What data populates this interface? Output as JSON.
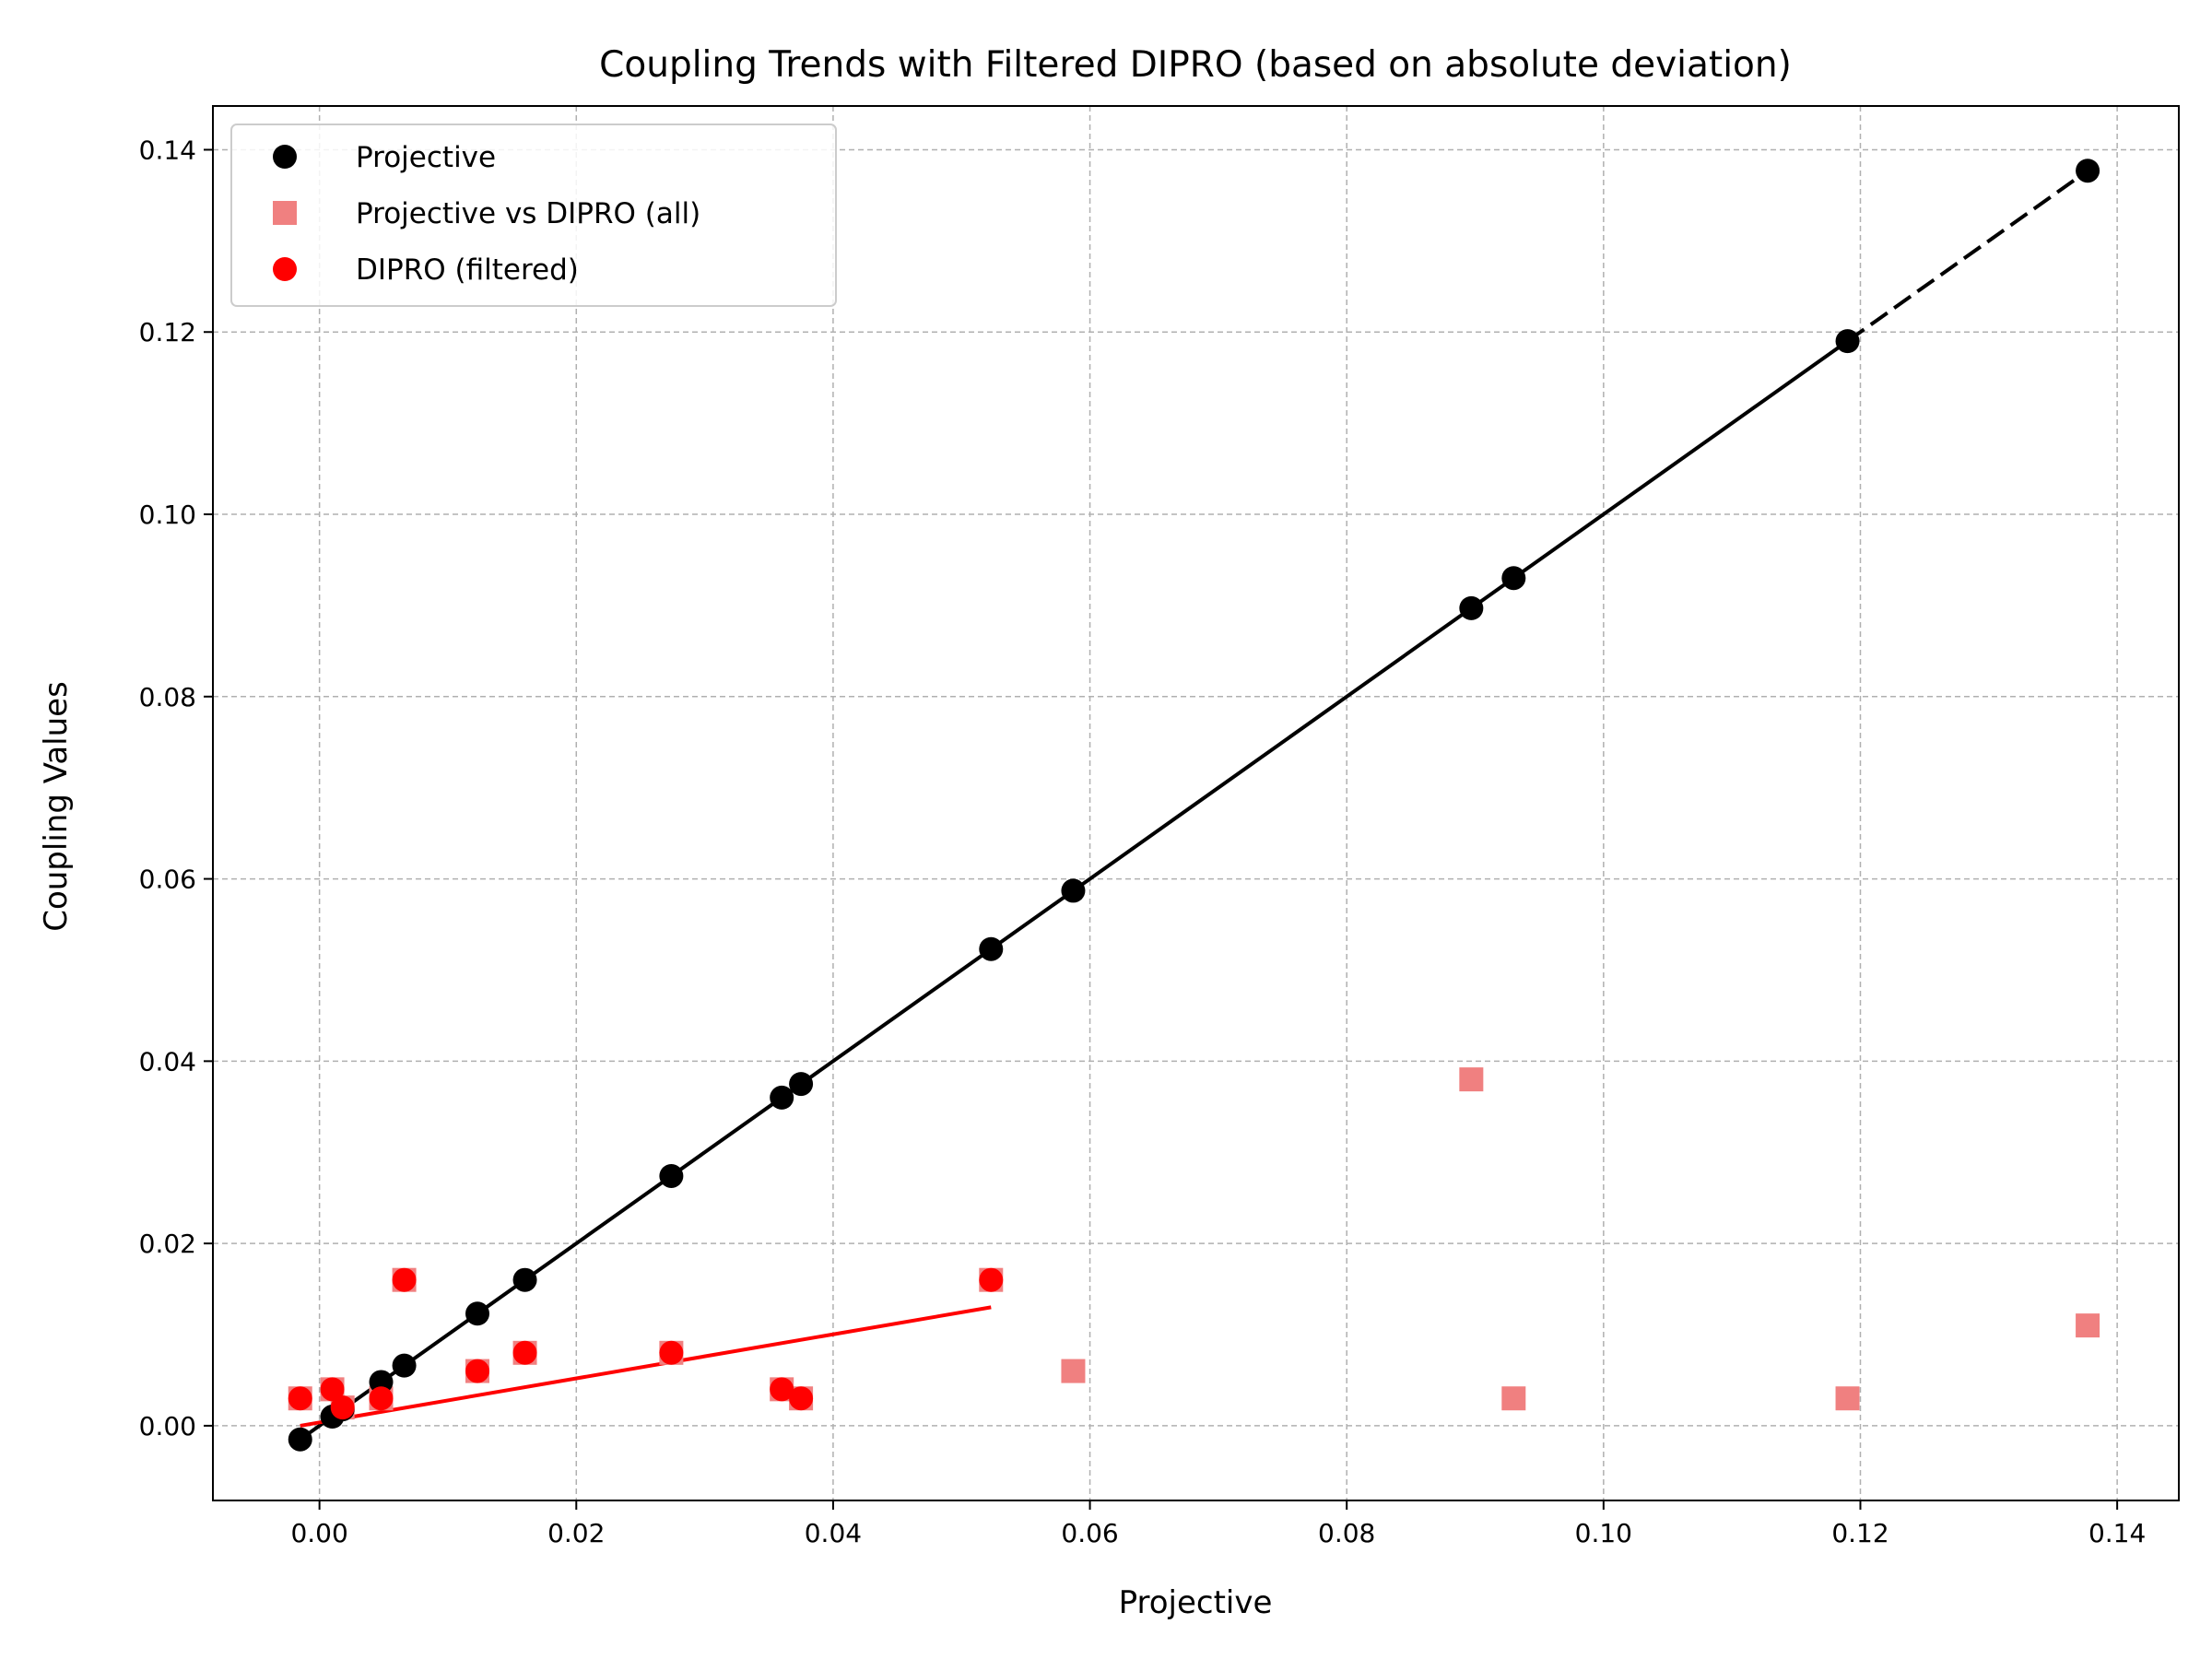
{
  "chart_data": {
    "type": "scatter",
    "title": "Coupling Trends with Filtered DIPRO (based on absolute deviation)",
    "xlabel": "Projective",
    "ylabel": "Coupling Values",
    "xlim": [
      -0.0083,
      0.1448
    ],
    "ylim": [
      -0.0082,
      0.1448
    ],
    "xticks": [
      0.0,
      0.02,
      0.04,
      0.06,
      0.08,
      0.1,
      0.12,
      0.14
    ],
    "xtick_labels": [
      "0.00",
      "0.02",
      "0.04",
      "0.06",
      "0.08",
      "0.10",
      "0.12",
      "0.14"
    ],
    "yticks": [
      0.0,
      0.02,
      0.04,
      0.06,
      0.08,
      0.1,
      0.12,
      0.14
    ],
    "ytick_labels": [
      "0.00",
      "0.02",
      "0.04",
      "0.06",
      "0.08",
      "0.10",
      "0.12",
      "0.14"
    ],
    "grid": true,
    "legend_position": "top-left",
    "series": [
      {
        "name": "Projective",
        "marker": "circle",
        "color": "#000000",
        "x": [
          -0.0015,
          0.001,
          0.0018,
          0.0048,
          0.0066,
          0.0123,
          0.016,
          0.0274,
          0.036,
          0.0375,
          0.0523,
          0.0587,
          0.0897,
          0.093,
          0.119,
          0.1377
        ],
        "y": [
          -0.0015,
          0.001,
          0.0018,
          0.0048,
          0.0066,
          0.0123,
          0.016,
          0.0274,
          0.036,
          0.0375,
          0.0523,
          0.0587,
          0.0897,
          0.093,
          0.119,
          0.1377
        ]
      },
      {
        "name": "Projective vs DIPRO (all)",
        "marker": "square",
        "color": "#f08080",
        "x": [
          -0.0015,
          0.001,
          0.0018,
          0.0048,
          0.0066,
          0.0123,
          0.016,
          0.0274,
          0.036,
          0.0375,
          0.0523,
          0.0587,
          0.0897,
          0.093,
          0.119,
          0.1377
        ],
        "y": [
          0.003,
          0.004,
          0.002,
          0.003,
          0.016,
          0.006,
          0.008,
          0.008,
          0.004,
          0.003,
          0.016,
          0.006,
          0.038,
          0.003,
          0.003,
          0.011
        ]
      },
      {
        "name": "DIPRO (filtered)",
        "marker": "circle",
        "color": "#ff0000",
        "x": [
          -0.0015,
          0.001,
          0.0018,
          0.0048,
          0.0066,
          0.0123,
          0.016,
          0.0274,
          0.036,
          0.0375,
          0.0523
        ],
        "y": [
          0.003,
          0.004,
          0.002,
          0.003,
          0.016,
          0.006,
          0.008,
          0.008,
          0.004,
          0.003,
          0.016
        ]
      }
    ],
    "lines": [
      {
        "style": "solid",
        "color": "#000000",
        "points": [
          [
            -0.0015,
            -0.0015
          ],
          [
            0.119,
            0.119
          ]
        ]
      },
      {
        "style": "dashed",
        "color": "#000000",
        "points": [
          [
            0.119,
            0.119
          ],
          [
            0.1377,
            0.1377
          ]
        ]
      },
      {
        "style": "solid",
        "color": "#ff0000",
        "points": [
          [
            -0.0015,
            0.0
          ],
          [
            0.0523,
            0.013
          ]
        ]
      }
    ]
  }
}
